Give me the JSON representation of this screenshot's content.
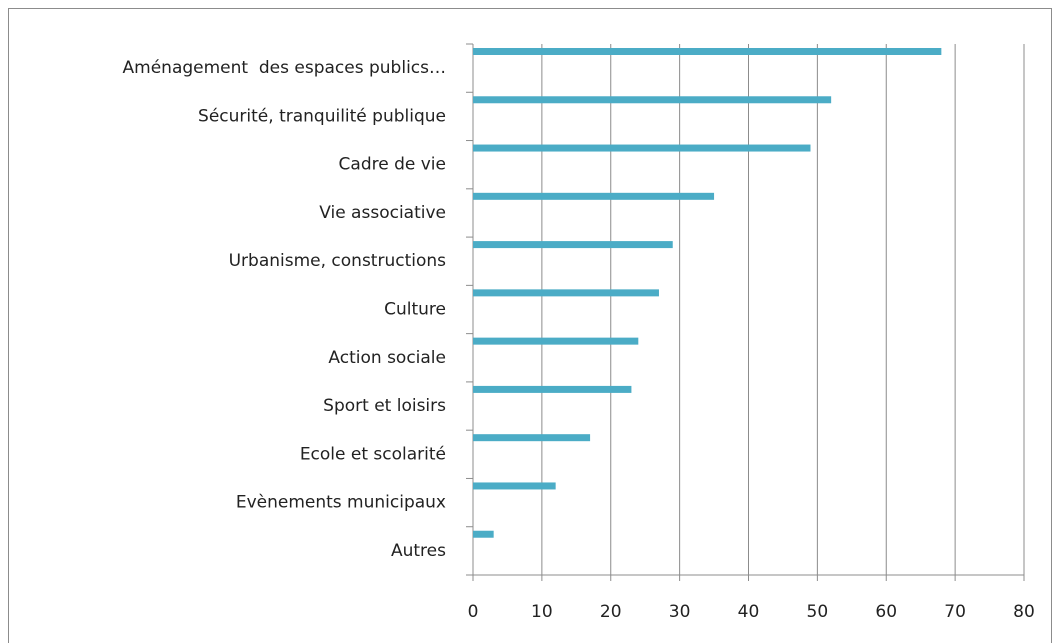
{
  "chart_data": {
    "type": "bar",
    "orientation": "horizontal",
    "categories": [
      "Aménagement  des espaces publics…",
      "Sécurité, tranquilité publique",
      "Cadre de vie",
      "Vie associative",
      "Urbanisme, constructions",
      "Culture",
      "Action sociale",
      "Sport et loisirs",
      "Ecole et scolarité",
      "Evènements municipaux",
      "Autres"
    ],
    "values": [
      68,
      52,
      49,
      35,
      29,
      27,
      24,
      23,
      17,
      12,
      3
    ],
    "color": "#4bacc6",
    "xlim": [
      0,
      80
    ],
    "xticks": [
      0,
      10,
      20,
      30,
      40,
      50,
      60,
      70,
      80
    ],
    "grid": true
  }
}
